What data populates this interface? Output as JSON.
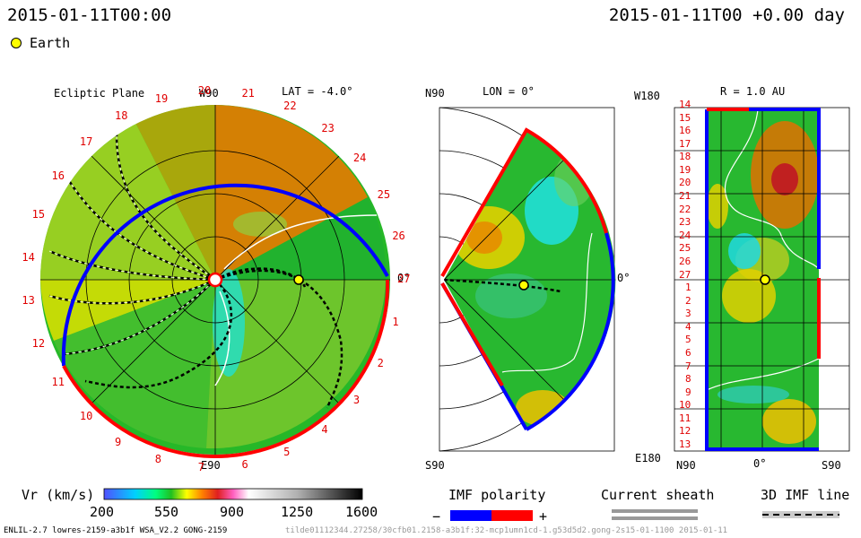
{
  "header": {
    "datetime": "2015-01-11T00:00",
    "epoch": "2015-01-11T00 +0.00 day",
    "earth_label": "Earth"
  },
  "ecliptic": {
    "title": "Ecliptic Plane",
    "lat": "LAT = -4.0°",
    "top_label": "W90",
    "bottom_label": "E90",
    "right_label": "0°",
    "rim_numbers": [
      "1",
      "2",
      "3",
      "4",
      "5",
      "6",
      "7",
      "8",
      "9",
      "10",
      "11",
      "12",
      "13",
      "14",
      "15",
      "16",
      "17",
      "18",
      "19",
      "20",
      "21",
      "22",
      "23",
      "24",
      "25",
      "26",
      "27"
    ]
  },
  "meridional": {
    "title": "LON = 0°",
    "top_label": "N90",
    "bottom_label": "S90",
    "right_label": "0°"
  },
  "sphere": {
    "title": "R = 1.0 AU",
    "top_left": "W180",
    "bottom_left": "E180",
    "bottom_labels": [
      "N90",
      "0°",
      "S90"
    ],
    "left_numbers": [
      "14",
      "15",
      "16",
      "17",
      "18",
      "19",
      "20",
      "21",
      "22",
      "23",
      "24",
      "25",
      "26",
      "27",
      "1",
      "2",
      "3",
      "4",
      "5",
      "6",
      "7",
      "8",
      "9",
      "10",
      "11",
      "12",
      "13"
    ]
  },
  "colorbar": {
    "label": "Vr (km/s)",
    "ticks": [
      "200",
      "550",
      "900",
      "1250",
      "1600"
    ],
    "colors": [
      "#4040ff",
      "#00c8ff",
      "#00ff90",
      "#30d030",
      "#ffff00",
      "#ff9000",
      "#e02020",
      "#ff60c0",
      "#ffffff",
      "#c0c0c0",
      "#808080",
      "#000000"
    ]
  },
  "legend": {
    "imf_title": "IMF polarity",
    "minus": "−",
    "plus": "+",
    "neg_color": "#0000ff",
    "pos_color": "#ff0000",
    "sheath_title": "Current sheath",
    "imf3d_title": "3D IMF line"
  },
  "footer": {
    "left": "ENLIL-2.7 lowres-2159-a3b1f WSA_V2.2 GONG-2159",
    "right": "tilde01112344.27258/30cfb01.2158-a3b1f:32-mcp1umn1cd-1.g53d5d2.gong-2s15-01-1100   2015-01-11"
  },
  "chart_data": [
    {
      "type": "heatmap",
      "title": "Ecliptic Plane",
      "variable": "Vr (km/s)",
      "lat_deg": -4.0,
      "range": [
        200,
        1600
      ],
      "earth": {
        "r_au": 1.0,
        "lon_deg": 0
      }
    },
    {
      "type": "heatmap",
      "title": "LON = 0°",
      "variable": "Vr (km/s)",
      "earth": {
        "r_au": 1.0,
        "lat_deg": 0
      }
    },
    {
      "type": "heatmap",
      "title": "R = 1.0 AU",
      "variable": "Vr (km/s)",
      "earth": {
        "lon_deg": 0,
        "lat_deg": 0
      }
    }
  ]
}
